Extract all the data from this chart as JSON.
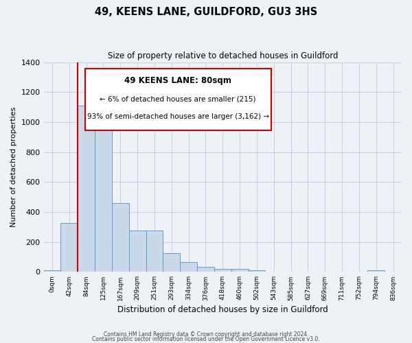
{
  "title": "49, KEENS LANE, GUILDFORD, GU3 3HS",
  "subtitle": "Size of property relative to detached houses in Guildford",
  "xlabel": "Distribution of detached houses by size in Guildford",
  "ylabel": "Number of detached properties",
  "bar_labels": [
    "0sqm",
    "42sqm",
    "84sqm",
    "125sqm",
    "167sqm",
    "209sqm",
    "251sqm",
    "293sqm",
    "334sqm",
    "376sqm",
    "418sqm",
    "460sqm",
    "502sqm",
    "543sqm",
    "585sqm",
    "627sqm",
    "669sqm",
    "711sqm",
    "752sqm",
    "794sqm",
    "836sqm"
  ],
  "bar_values": [
    10,
    325,
    1110,
    945,
    460,
    275,
    275,
    125,
    65,
    35,
    20,
    20,
    10,
    0,
    0,
    0,
    0,
    0,
    0,
    10,
    0
  ],
  "bar_color": "#c9d9ea",
  "bar_edge_color": "#6699cc",
  "ylim": [
    0,
    1400
  ],
  "yticks": [
    0,
    200,
    400,
    600,
    800,
    1000,
    1200,
    1400
  ],
  "property_line_index": 2,
  "property_line_color": "#cc0000",
  "annotation_title": "49 KEENS LANE: 80sqm",
  "annotation_line1": "← 6% of detached houses are smaller (215)",
  "annotation_line2": "93% of semi-detached houses are larger (3,162) →",
  "annotation_box_color": "#cc0000",
  "footer_line1": "Contains HM Land Registry data © Crown copyright and database right 2024.",
  "footer_line2": "Contains public sector information licensed under the Open Government Licence v3.0.",
  "background_color": "#eef2f7",
  "plot_bg_color": "#eef2f7",
  "grid_color": "#c8d0dc"
}
